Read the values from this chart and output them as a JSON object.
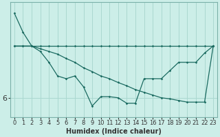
{
  "xlabel": "Humidex (Indice chaleur)",
  "bg_color": "#cceee8",
  "grid_color": "#aad8d0",
  "line_color": "#1a6a60",
  "x_values": [
    0,
    1,
    2,
    3,
    4,
    5,
    6,
    7,
    8,
    9,
    10,
    11,
    12,
    13,
    14,
    15,
    16,
    17,
    18,
    19,
    20,
    21,
    22,
    23
  ],
  "series_flat": [
    6.95,
    6.95,
    6.95,
    6.95,
    6.95,
    6.95,
    6.95,
    6.95,
    6.95,
    6.95,
    6.95,
    6.95,
    6.95,
    6.95,
    6.95,
    6.95,
    6.95,
    6.95,
    6.95,
    6.95,
    6.95,
    6.95,
    6.95,
    6.95
  ],
  "series_diag": [
    6.95,
    6.95,
    6.95,
    6.9,
    6.85,
    6.8,
    6.72,
    6.65,
    6.55,
    6.48,
    6.4,
    6.35,
    6.28,
    6.22,
    6.15,
    6.1,
    6.05,
    6.0,
    5.98,
    5.95,
    5.92,
    5.92,
    5.92,
    6.95
  ],
  "series_zigzag": [
    7.55,
    7.2,
    6.95,
    6.85,
    6.65,
    6.4,
    6.35,
    6.4,
    6.2,
    5.85,
    6.02,
    6.02,
    6.0,
    5.9,
    5.9,
    6.35,
    6.35,
    6.35,
    6.5,
    6.65,
    6.65,
    6.65,
    6.82,
    6.95
  ],
  "ytick_values": [
    6.0
  ],
  "ytick_labels": [
    "6"
  ],
  "ylim_bottom": 5.65,
  "ylim_top": 7.75,
  "xlim_left": -0.5,
  "xlim_right": 23.5,
  "font_color": "#333333",
  "tick_fontsize": 6,
  "xlabel_fontsize": 7
}
